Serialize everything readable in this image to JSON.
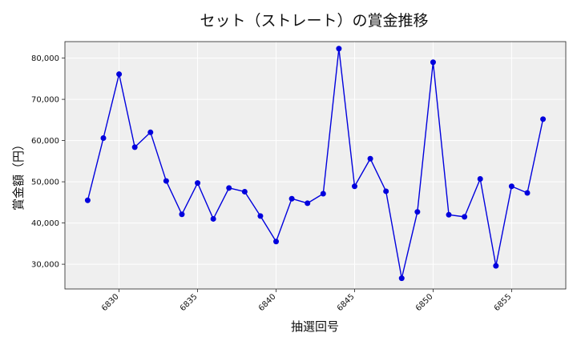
{
  "chart_data": {
    "type": "line",
    "title": "セット（ストレート）の賞金推移",
    "xlabel": "抽選回号",
    "ylabel": "賞金額（円）",
    "xlim": [
      6826.55,
      6858.45
    ],
    "ylim": [
      24000,
      84000
    ],
    "x_ticks": [
      6830,
      6835,
      6840,
      6845,
      6850,
      6855
    ],
    "x_tick_labels": [
      "6830",
      "6835",
      "6840",
      "6845",
      "6850",
      "6855"
    ],
    "y_ticks": [
      30000,
      40000,
      50000,
      60000,
      70000,
      80000
    ],
    "y_tick_labels": [
      "30,000",
      "40,000",
      "50,000",
      "60,000",
      "70,000",
      "80,000"
    ],
    "grid": true,
    "series": [
      {
        "color": "#0000dd",
        "x": [
          6828,
          6829,
          6830,
          6831,
          6832,
          6833,
          6834,
          6835,
          6836,
          6837,
          6838,
          6839,
          6840,
          6841,
          6842,
          6843,
          6844,
          6845,
          6846,
          6847,
          6848,
          6849,
          6850,
          6851,
          6852,
          6853,
          6854,
          6855,
          6856,
          6857
        ],
        "y": [
          45500,
          60600,
          76100,
          58400,
          62000,
          50200,
          42100,
          49700,
          41000,
          48500,
          47600,
          41700,
          35500,
          45900,
          44800,
          47100,
          82300,
          48900,
          55600,
          47700,
          26600,
          42700,
          79000,
          42000,
          41500,
          50700,
          29600,
          48900,
          47300,
          65200
        ]
      }
    ]
  }
}
